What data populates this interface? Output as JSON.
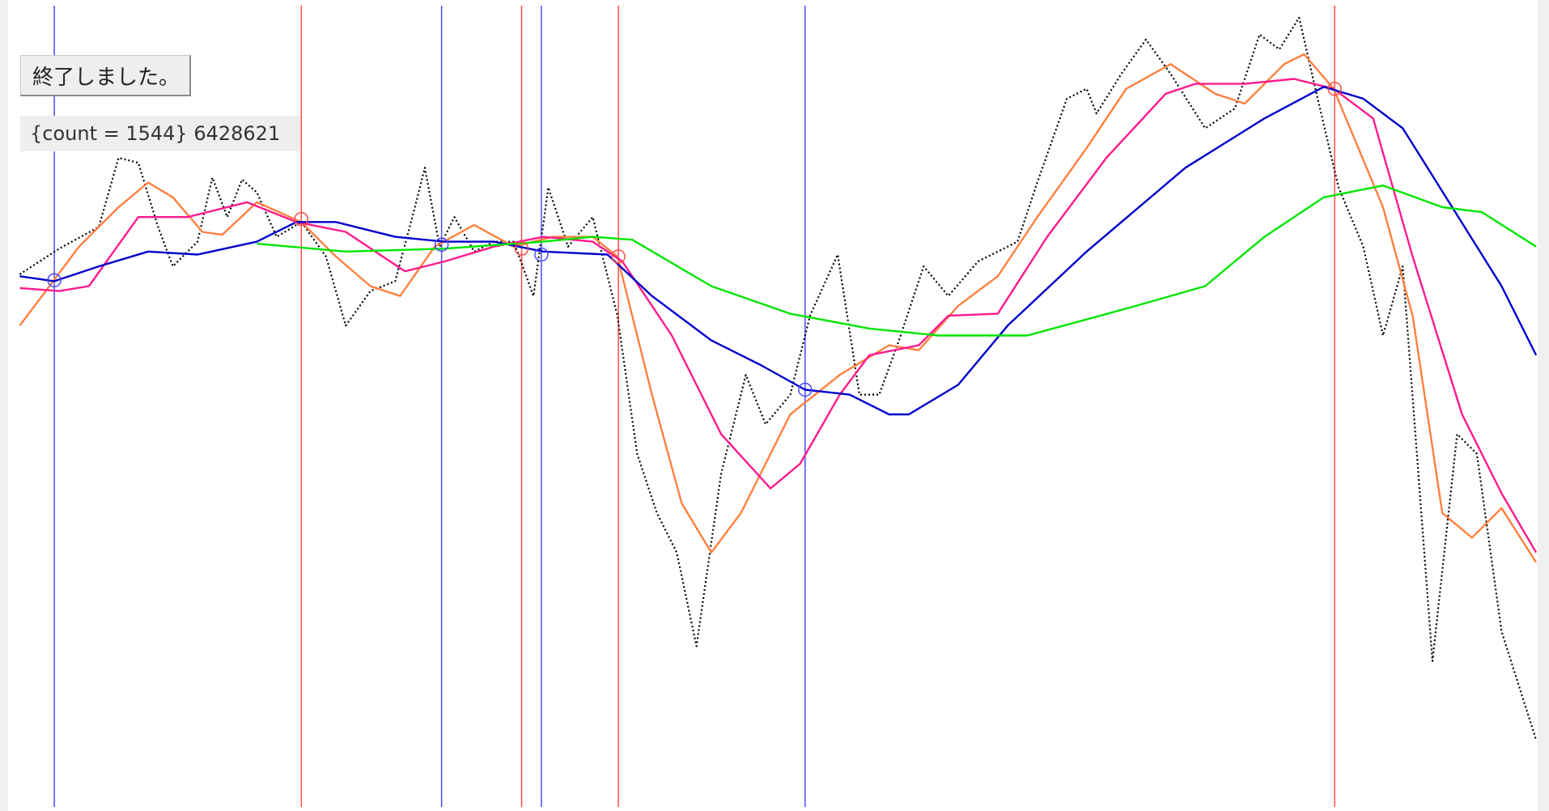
{
  "button": {
    "label": "終了しました。"
  },
  "info": {
    "text": "{count = 1544} 6428621"
  },
  "colors": {
    "price": "#000000",
    "fast": "#ff8040",
    "mid": "#ff1a8c",
    "slow": "#0000cc",
    "long": "#00e600",
    "buy_line": "#4a4aff",
    "sell_line": "#ff4a4a"
  },
  "chart_data": {
    "type": "line",
    "xlim": [
      0,
      1568
    ],
    "ylim": [
      0,
      822
    ],
    "grid": false,
    "series": [
      {
        "key": "price",
        "style": "dotted",
        "points": [
          [
            20,
            544
          ],
          [
            60,
            570
          ],
          [
            100,
            592
          ],
          [
            120,
            662
          ],
          [
            140,
            657
          ],
          [
            160,
            592
          ],
          [
            175,
            552
          ],
          [
            200,
            577
          ],
          [
            215,
            642
          ],
          [
            230,
            602
          ],
          [
            245,
            640
          ],
          [
            260,
            627
          ],
          [
            280,
            582
          ],
          [
            305,
            597
          ],
          [
            330,
            562
          ],
          [
            350,
            492
          ],
          [
            375,
            527
          ],
          [
            400,
            537
          ],
          [
            420,
            612
          ],
          [
            430,
            652
          ],
          [
            445,
            572
          ],
          [
            460,
            602
          ],
          [
            480,
            567
          ],
          [
            500,
            577
          ],
          [
            520,
            577
          ],
          [
            540,
            522
          ],
          [
            555,
            632
          ],
          [
            575,
            572
          ],
          [
            600,
            602
          ],
          [
            625,
            502
          ],
          [
            645,
            362
          ],
          [
            665,
            302
          ],
          [
            685,
            262
          ],
          [
            705,
            167
          ],
          [
            730,
            342
          ],
          [
            755,
            442
          ],
          [
            775,
            392
          ],
          [
            800,
            422
          ],
          [
            820,
            502
          ],
          [
            848,
            564
          ],
          [
            870,
            422
          ],
          [
            890,
            422
          ],
          [
            910,
            477
          ],
          [
            935,
            552
          ],
          [
            960,
            522
          ],
          [
            990,
            557
          ],
          [
            1030,
            577
          ],
          [
            1050,
            637
          ],
          [
            1080,
            722
          ],
          [
            1100,
            732
          ],
          [
            1110,
            707
          ],
          [
            1135,
            747
          ],
          [
            1160,
            782
          ],
          [
            1185,
            747
          ],
          [
            1220,
            692
          ],
          [
            1250,
            712
          ],
          [
            1275,
            787
          ],
          [
            1295,
            772
          ],
          [
            1315,
            804
          ],
          [
            1335,
            717
          ],
          [
            1355,
            632
          ],
          [
            1380,
            572
          ],
          [
            1400,
            482
          ],
          [
            1420,
            552
          ],
          [
            1450,
            152
          ],
          [
            1475,
            382
          ],
          [
            1495,
            362
          ],
          [
            1520,
            182
          ],
          [
            1555,
            72
          ]
        ]
      },
      {
        "key": "fast",
        "style": "solid",
        "points": [
          [
            20,
            492
          ],
          [
            50,
            532
          ],
          [
            80,
            572
          ],
          [
            120,
            612
          ],
          [
            150,
            637
          ],
          [
            175,
            622
          ],
          [
            205,
            587
          ],
          [
            225,
            584
          ],
          [
            260,
            617
          ],
          [
            305,
            597
          ],
          [
            340,
            562
          ],
          [
            375,
            532
          ],
          [
            405,
            522
          ],
          [
            440,
            572
          ],
          [
            480,
            594
          ],
          [
            520,
            572
          ],
          [
            560,
            582
          ],
          [
            600,
            582
          ],
          [
            625,
            562
          ],
          [
            660,
            422
          ],
          [
            690,
            312
          ],
          [
            720,
            262
          ],
          [
            750,
            302
          ],
          [
            800,
            402
          ],
          [
            850,
            442
          ],
          [
            900,
            472
          ],
          [
            930,
            467
          ],
          [
            970,
            512
          ],
          [
            1010,
            542
          ],
          [
            1050,
            602
          ],
          [
            1100,
            672
          ],
          [
            1140,
            732
          ],
          [
            1185,
            757
          ],
          [
            1230,
            727
          ],
          [
            1260,
            717
          ],
          [
            1300,
            757
          ],
          [
            1320,
            767
          ],
          [
            1350,
            732
          ],
          [
            1400,
            612
          ],
          [
            1430,
            502
          ],
          [
            1460,
            302
          ],
          [
            1490,
            277
          ],
          [
            1520,
            307
          ],
          [
            1555,
            252
          ]
        ]
      },
      {
        "key": "mid",
        "style": "solid",
        "points": [
          [
            20,
            530
          ],
          [
            60,
            527
          ],
          [
            90,
            532
          ],
          [
            140,
            602
          ],
          [
            190,
            602
          ],
          [
            250,
            617
          ],
          [
            300,
            597
          ],
          [
            350,
            587
          ],
          [
            410,
            547
          ],
          [
            450,
            557
          ],
          [
            500,
            572
          ],
          [
            550,
            582
          ],
          [
            600,
            577
          ],
          [
            630,
            557
          ],
          [
            680,
            482
          ],
          [
            730,
            382
          ],
          [
            780,
            327
          ],
          [
            810,
            352
          ],
          [
            850,
            422
          ],
          [
            880,
            462
          ],
          [
            930,
            472
          ],
          [
            960,
            502
          ],
          [
            1010,
            504
          ],
          [
            1060,
            582
          ],
          [
            1120,
            662
          ],
          [
            1180,
            727
          ],
          [
            1210,
            737
          ],
          [
            1260,
            737
          ],
          [
            1310,
            742
          ],
          [
            1350,
            732
          ],
          [
            1390,
            702
          ],
          [
            1430,
            562
          ],
          [
            1480,
            402
          ],
          [
            1520,
            322
          ],
          [
            1555,
            262
          ]
        ]
      },
      {
        "key": "slow",
        "style": "solid",
        "points": [
          [
            20,
            542
          ],
          [
            55,
            537
          ],
          [
            100,
            552
          ],
          [
            150,
            567
          ],
          [
            200,
            564
          ],
          [
            260,
            577
          ],
          [
            300,
            597
          ],
          [
            340,
            597
          ],
          [
            400,
            582
          ],
          [
            450,
            577
          ],
          [
            500,
            577
          ],
          [
            550,
            567
          ],
          [
            615,
            564
          ],
          [
            660,
            522
          ],
          [
            720,
            477
          ],
          [
            770,
            452
          ],
          [
            815,
            427
          ],
          [
            860,
            422
          ],
          [
            900,
            402
          ],
          [
            920,
            402
          ],
          [
            970,
            432
          ],
          [
            1020,
            492
          ],
          [
            1100,
            567
          ],
          [
            1200,
            652
          ],
          [
            1280,
            702
          ],
          [
            1340,
            734
          ],
          [
            1380,
            722
          ],
          [
            1420,
            692
          ],
          [
            1470,
            612
          ],
          [
            1520,
            532
          ],
          [
            1555,
            462
          ]
        ]
      },
      {
        "key": "long",
        "style": "solid",
        "points": [
          [
            260,
            575
          ],
          [
            350,
            567
          ],
          [
            450,
            570
          ],
          [
            550,
            577
          ],
          [
            600,
            582
          ],
          [
            640,
            579
          ],
          [
            720,
            532
          ],
          [
            800,
            504
          ],
          [
            880,
            489
          ],
          [
            950,
            482
          ],
          [
            1040,
            482
          ],
          [
            1150,
            512
          ],
          [
            1220,
            532
          ],
          [
            1280,
            582
          ],
          [
            1340,
            622
          ],
          [
            1400,
            634
          ],
          [
            1460,
            612
          ],
          [
            1500,
            607
          ],
          [
            1555,
            572
          ]
        ]
      }
    ],
    "vertical_lines": [
      {
        "x": 55,
        "signal": "buy"
      },
      {
        "x": 305,
        "signal": "sell"
      },
      {
        "x": 447,
        "signal": "buy"
      },
      {
        "x": 528,
        "signal": "sell"
      },
      {
        "x": 548,
        "signal": "buy"
      },
      {
        "x": 626,
        "signal": "sell"
      },
      {
        "x": 815,
        "signal": "buy"
      },
      {
        "x": 1351,
        "signal": "sell"
      }
    ],
    "markers": [
      {
        "x": 55,
        "y": 538,
        "signal": "buy"
      },
      {
        "x": 447,
        "y": 574,
        "signal": "buy"
      },
      {
        "x": 548,
        "y": 564,
        "signal": "buy"
      },
      {
        "x": 815,
        "y": 427,
        "signal": "buy"
      },
      {
        "x": 305,
        "y": 600,
        "signal": "sell"
      },
      {
        "x": 528,
        "y": 570,
        "signal": "sell"
      },
      {
        "x": 626,
        "y": 562,
        "signal": "sell"
      },
      {
        "x": 1351,
        "y": 732,
        "signal": "sell"
      }
    ]
  }
}
